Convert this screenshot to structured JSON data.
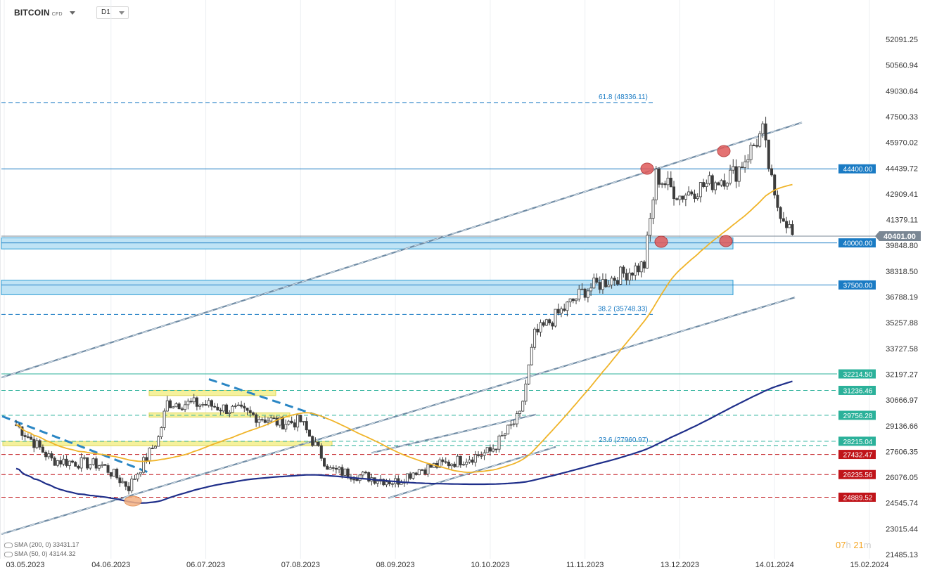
{
  "header": {
    "symbol": "BITCOIN",
    "symbol_sub": "CFD",
    "timeframe": "D1"
  },
  "legend": [
    {
      "label": "SMA (200, 0) 33431.17"
    },
    {
      "label": "SMA (50, 0) 43144.32"
    }
  ],
  "countdown": {
    "h": "07",
    "h_unit": "h",
    "m": "21",
    "m_unit": "m"
  },
  "colors": {
    "up": "#3c3c3c",
    "down": "#3c3c3c",
    "sma50": "#f0b429",
    "sma200": "#1f2f8a",
    "channel": "#6e8aa3",
    "zone_fill": "#bfe3f5",
    "zone_stroke": "#2a9bd4",
    "yellow_zone": "#f4ef8b",
    "label_blue": "#1a7bc4",
    "label_green": "#2bb19a",
    "label_red": "#c0141a",
    "trend_dash": "#2a86c4"
  },
  "chart_data": {
    "type": "candlestick",
    "y_ticks": [
      "52091.25",
      "50560.94",
      "49030.64",
      "47500.33",
      "45970.02",
      "44439.72",
      "42909.41",
      "41379.11",
      "39848.80",
      "38318.50",
      "36788.19",
      "35257.88",
      "33727.58",
      "32197.27",
      "30666.97",
      "29136.66",
      "27606.35",
      "26076.05",
      "24545.74",
      "23015.44",
      "21485.13"
    ],
    "x_ticks": [
      "03.05.2023",
      "04.06.2023",
      "06.07.2023",
      "07.08.2023",
      "08.09.2023",
      "10.10.2023",
      "11.11.2023",
      "13.12.2023",
      "14.01.2024",
      "15.02.2024"
    ],
    "current_price": "40401.00",
    "price_levels": [
      {
        "label": "44400.00",
        "price": 44400,
        "style": "solid",
        "color": "blue"
      },
      {
        "label": "40000.00",
        "price": 40000,
        "style": "solid",
        "color": "blue"
      },
      {
        "label": "37500.00",
        "price": 37500,
        "style": "solid",
        "color": "blue"
      },
      {
        "label": "32214.50",
        "price": 32214.5,
        "style": "solid",
        "color": "green"
      },
      {
        "label": "31236.46",
        "price": 31236.46,
        "style": "dashed",
        "color": "green"
      },
      {
        "label": "29756.28",
        "price": 29756.28,
        "style": "dashed",
        "color": "green"
      },
      {
        "label": "28215.04",
        "price": 28215.04,
        "style": "dashed",
        "color": "green"
      },
      {
        "label": "27432.47",
        "price": 27432.47,
        "style": "dashed",
        "color": "red"
      },
      {
        "label": "26235.56",
        "price": 26235.56,
        "style": "dashed",
        "color": "red"
      },
      {
        "label": "24889.52",
        "price": 24889.52,
        "style": "dashed",
        "color": "red"
      }
    ],
    "fib_levels": [
      {
        "label": "61.8 (48336.11)",
        "price": 48336.11
      },
      {
        "label": "38.2 (35748.33)",
        "price": 35748.33
      },
      {
        "label": "23.6 (27960.97)",
        "price": 27960.97
      }
    ],
    "zones": [
      {
        "from": 39640,
        "to": 40300
      },
      {
        "from": 36920,
        "to": 37780
      }
    ],
    "close_series_key_points": [
      [
        "03.05.2023",
        29200
      ],
      [
        "15.05.2023",
        27100
      ],
      [
        "01.06.2023",
        26800
      ],
      [
        "10.06.2023",
        25500
      ],
      [
        "20.06.2023",
        28400
      ],
      [
        "23.06.2023",
        30500
      ],
      [
        "06.07.2023",
        30400
      ],
      [
        "17.07.2023",
        30000
      ],
      [
        "31.07.2023",
        29300
      ],
      [
        "07.08.2023",
        29400
      ],
      [
        "17.08.2023",
        26500
      ],
      [
        "08.09.2023",
        25800
      ],
      [
        "15.09.2023",
        26500
      ],
      [
        "28.09.2023",
        27000
      ],
      [
        "10.10.2023",
        27600
      ],
      [
        "20.10.2023",
        29700
      ],
      [
        "25.10.2023",
        34500
      ],
      [
        "11.11.2023",
        37200
      ],
      [
        "01.12.2023",
        38700
      ],
      [
        "05.12.2023",
        44000
      ],
      [
        "13.12.2023",
        42800
      ],
      [
        "01.01.2024",
        44200
      ],
      [
        "10.01.2024",
        46600
      ],
      [
        "14.01.2024",
        42500
      ],
      [
        "18.01.2024",
        41300
      ],
      [
        "20.01.2024",
        40401
      ]
    ]
  }
}
